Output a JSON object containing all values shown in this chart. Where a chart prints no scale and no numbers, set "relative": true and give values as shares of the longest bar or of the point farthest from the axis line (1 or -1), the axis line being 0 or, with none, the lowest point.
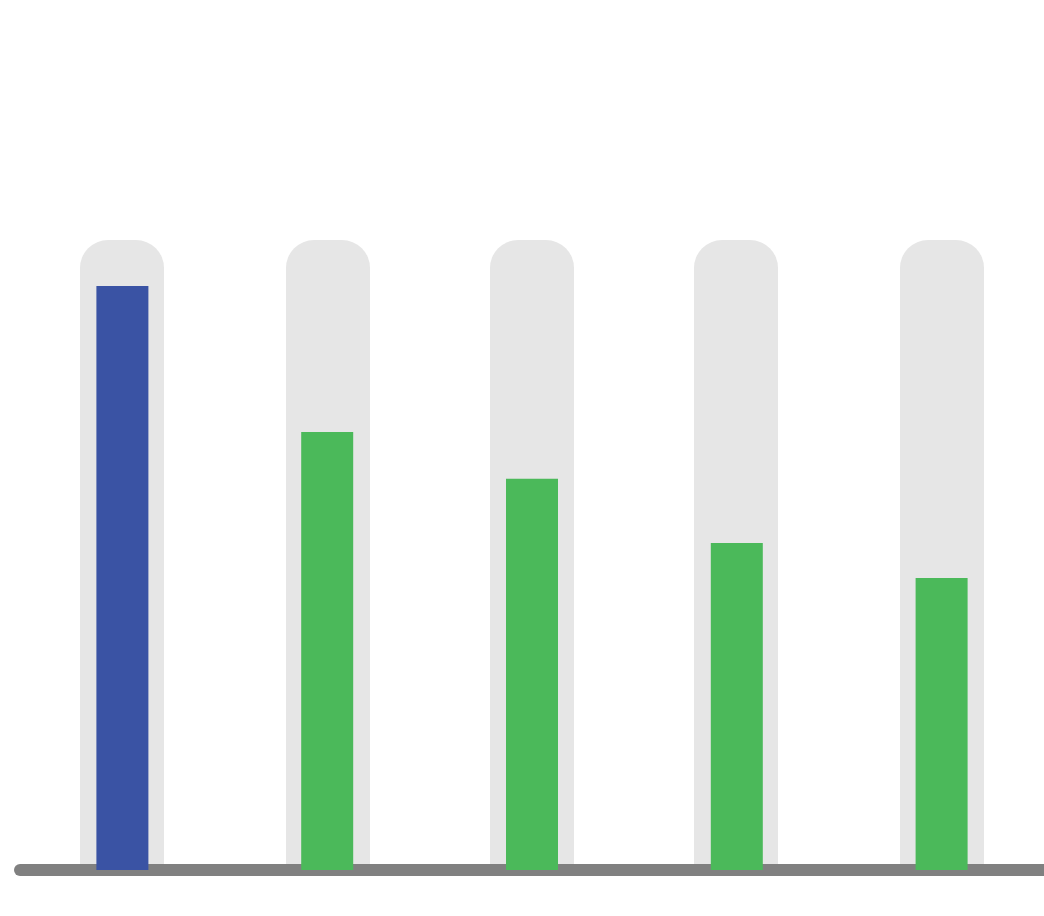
{
  "chart_data": {
    "type": "bar",
    "relative": true,
    "categories": [
      null,
      null,
      null,
      null,
      null
    ],
    "series": [
      {
        "colors": [
          "#3a53a4",
          "#4bb95a",
          "#4bb95a",
          "#4bb95a",
          "#4bb95a"
        ],
        "values": [
          1,
          0.75,
          0.67,
          0.56,
          0.5
        ]
      }
    ]
  }
}
